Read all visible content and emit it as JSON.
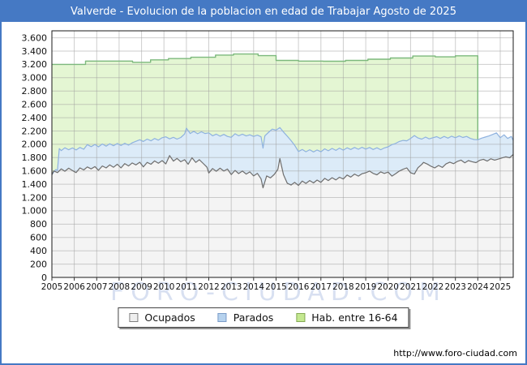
{
  "window": {
    "title": "Valverde - Evolucion de la poblacion en edad de Trabajar Agosto de 2025"
  },
  "watermark": {
    "text": "FORO-CIUDAD.COM"
  },
  "footer": {
    "url": "http://www.foro-ciudad.com"
  },
  "colors": {
    "titlebar_bg": "#4579c4",
    "frame_border": "#4579c4",
    "plot_frame": "#1a1a1a",
    "gridline": "rgba(158,158,158,0.5)",
    "hab_fill": "#e4f6d3",
    "hab_line": "#7db97d",
    "parados_fill": "#dcebf8",
    "parados_line": "#8fb2df",
    "ocupados_fill": "#f4f4f4",
    "ocupados_line": "#6e6e6e"
  },
  "legend": {
    "items": [
      {
        "label": "Ocupados",
        "fill": "#efefef",
        "border": "#808080"
      },
      {
        "label": "Parados",
        "fill": "#b6d2ee",
        "border": "#7b9cc8"
      },
      {
        "label": "Hab. entre 16-64",
        "fill": "#c4e890",
        "border": "#85aa55"
      }
    ]
  },
  "chart_data": {
    "type": "area",
    "title": "Valverde - Evolucion de la poblacion en edad de Trabajar Agosto de 2025",
    "xlabel": "",
    "ylabel": "",
    "grid": true,
    "legend_position": "bottom",
    "ylim": [
      0,
      3600
    ],
    "y_tick_step": 200,
    "x_range": [
      2005.0,
      2025.58
    ],
    "x_tick_labels": [
      "2005",
      "2006",
      "2007",
      "2008",
      "2009",
      "2010",
      "2011",
      "2012",
      "2013",
      "2014",
      "2015",
      "2016",
      "2017",
      "2018",
      "2019",
      "2020",
      "2021",
      "2022",
      "2023",
      "2024",
      "2025"
    ],
    "y_tick_labels": [
      "0",
      "200",
      "400",
      "600",
      "800",
      "1.000",
      "1.200",
      "1.400",
      "1.600",
      "1.800",
      "2.000",
      "2.200",
      "2.400",
      "2.600",
      "2.800",
      "3.000",
      "3.200",
      "3.400",
      "3.600"
    ],
    "stacking_note": "Parados series is drawn stacked on top of Ocupados; Hab. entre 16-64 is the annual stepped total, data ends Jan 2024",
    "series": [
      {
        "id": "hab",
        "name": "Hab. entre 16-64",
        "render": "step",
        "fill": "#e4f6d3",
        "line": "#7db97d",
        "steps": [
          [
            2005.0,
            3200
          ],
          [
            2006.5,
            3250
          ],
          [
            2007.6,
            3250
          ],
          [
            2008.6,
            3232
          ],
          [
            2009.4,
            3268
          ],
          [
            2010.2,
            3288
          ],
          [
            2011.2,
            3308
          ],
          [
            2012.3,
            3340
          ],
          [
            2013.1,
            3356
          ],
          [
            2014.2,
            3332
          ],
          [
            2015.0,
            3260
          ],
          [
            2016.0,
            3250
          ],
          [
            2017.1,
            3248
          ],
          [
            2018.1,
            3260
          ],
          [
            2019.1,
            3278
          ],
          [
            2020.1,
            3296
          ],
          [
            2021.1,
            3326
          ],
          [
            2022.1,
            3314
          ],
          [
            2023.0,
            3330
          ]
        ],
        "end_x": 2024.0,
        "end_drop_to": 2068
      },
      {
        "id": "parados",
        "name": "Parados",
        "render": "line",
        "fill": "#dcebf8",
        "line": "#8fb2df",
        "points": [
          [
            2005.0,
            1545
          ],
          [
            2005.17,
            1620
          ],
          [
            2005.25,
            1610
          ],
          [
            2005.33,
            1935
          ],
          [
            2005.42,
            1905
          ],
          [
            2005.58,
            1948
          ],
          [
            2005.75,
            1918
          ],
          [
            2005.92,
            1945
          ],
          [
            2006.08,
            1915
          ],
          [
            2006.25,
            1952
          ],
          [
            2006.42,
            1925
          ],
          [
            2006.58,
            1995
          ],
          [
            2006.75,
            1965
          ],
          [
            2006.92,
            1998
          ],
          [
            2007.08,
            1962
          ],
          [
            2007.25,
            2005
          ],
          [
            2007.42,
            1972
          ],
          [
            2007.58,
            2008
          ],
          [
            2007.75,
            1978
          ],
          [
            2007.92,
            2012
          ],
          [
            2008.08,
            1982
          ],
          [
            2008.25,
            2015
          ],
          [
            2008.42,
            1988
          ],
          [
            2008.58,
            2022
          ],
          [
            2008.75,
            2045
          ],
          [
            2008.92,
            2068
          ],
          [
            2009.08,
            2042
          ],
          [
            2009.25,
            2078
          ],
          [
            2009.42,
            2052
          ],
          [
            2009.58,
            2088
          ],
          [
            2009.75,
            2062
          ],
          [
            2009.92,
            2098
          ],
          [
            2010.08,
            2112
          ],
          [
            2010.25,
            2082
          ],
          [
            2010.42,
            2105
          ],
          [
            2010.58,
            2078
          ],
          [
            2010.75,
            2102
          ],
          [
            2010.92,
            2155
          ],
          [
            2011.0,
            2242
          ],
          [
            2011.17,
            2162
          ],
          [
            2011.33,
            2195
          ],
          [
            2011.5,
            2158
          ],
          [
            2011.67,
            2188
          ],
          [
            2011.83,
            2162
          ],
          [
            2012.0,
            2172
          ],
          [
            2012.17,
            2128
          ],
          [
            2012.33,
            2152
          ],
          [
            2012.5,
            2122
          ],
          [
            2012.67,
            2148
          ],
          [
            2012.83,
            2118
          ],
          [
            2013.0,
            2105
          ],
          [
            2013.17,
            2158
          ],
          [
            2013.33,
            2128
          ],
          [
            2013.5,
            2152
          ],
          [
            2013.67,
            2125
          ],
          [
            2013.83,
            2142
          ],
          [
            2014.0,
            2118
          ],
          [
            2014.17,
            2138
          ],
          [
            2014.33,
            2112
          ],
          [
            2014.42,
            1942
          ],
          [
            2014.5,
            2128
          ],
          [
            2014.67,
            2182
          ],
          [
            2014.83,
            2228
          ],
          [
            2015.0,
            2212
          ],
          [
            2015.17,
            2252
          ],
          [
            2015.33,
            2185
          ],
          [
            2015.5,
            2122
          ],
          [
            2015.67,
            2055
          ],
          [
            2015.83,
            1985
          ],
          [
            2016.0,
            1892
          ],
          [
            2016.17,
            1922
          ],
          [
            2016.33,
            1888
          ],
          [
            2016.5,
            1918
          ],
          [
            2016.67,
            1885
          ],
          [
            2016.83,
            1915
          ],
          [
            2017.0,
            1888
          ],
          [
            2017.17,
            1932
          ],
          [
            2017.33,
            1902
          ],
          [
            2017.5,
            1938
          ],
          [
            2017.67,
            1908
          ],
          [
            2017.83,
            1942
          ],
          [
            2018.0,
            1912
          ],
          [
            2018.17,
            1948
          ],
          [
            2018.33,
            1922
          ],
          [
            2018.5,
            1952
          ],
          [
            2018.67,
            1925
          ],
          [
            2018.83,
            1955
          ],
          [
            2019.0,
            1928
          ],
          [
            2019.17,
            1952
          ],
          [
            2019.33,
            1922
          ],
          [
            2019.5,
            1948
          ],
          [
            2019.67,
            1918
          ],
          [
            2019.83,
            1945
          ],
          [
            2020.0,
            1962
          ],
          [
            2020.17,
            1995
          ],
          [
            2020.33,
            2012
          ],
          [
            2020.5,
            2042
          ],
          [
            2020.67,
            2058
          ],
          [
            2020.83,
            2052
          ],
          [
            2021.0,
            2088
          ],
          [
            2021.17,
            2132
          ],
          [
            2021.33,
            2095
          ],
          [
            2021.5,
            2078
          ],
          [
            2021.67,
            2108
          ],
          [
            2021.83,
            2082
          ],
          [
            2022.0,
            2098
          ],
          [
            2022.17,
            2115
          ],
          [
            2022.33,
            2088
          ],
          [
            2022.5,
            2118
          ],
          [
            2022.67,
            2092
          ],
          [
            2022.83,
            2122
          ],
          [
            2023.0,
            2098
          ],
          [
            2023.17,
            2125
          ],
          [
            2023.33,
            2102
          ],
          [
            2023.5,
            2118
          ],
          [
            2023.67,
            2088
          ],
          [
            2023.83,
            2072
          ],
          [
            2024.0,
            2068
          ],
          [
            2024.17,
            2092
          ],
          [
            2024.33,
            2108
          ],
          [
            2024.5,
            2125
          ],
          [
            2024.67,
            2148
          ],
          [
            2024.83,
            2172
          ],
          [
            2025.0,
            2098
          ],
          [
            2025.17,
            2142
          ],
          [
            2025.33,
            2088
          ],
          [
            2025.5,
            2118
          ],
          [
            2025.58,
            2058
          ]
        ]
      },
      {
        "id": "ocupados",
        "name": "Ocupados",
        "render": "line",
        "fill": "#f4f4f4",
        "line": "#6e6e6e",
        "points": [
          [
            2005.0,
            1540
          ],
          [
            2005.08,
            1600
          ],
          [
            2005.25,
            1575
          ],
          [
            2005.42,
            1630
          ],
          [
            2005.58,
            1595
          ],
          [
            2005.75,
            1640
          ],
          [
            2005.92,
            1605
          ],
          [
            2006.08,
            1575
          ],
          [
            2006.25,
            1645
          ],
          [
            2006.42,
            1615
          ],
          [
            2006.58,
            1660
          ],
          [
            2006.75,
            1630
          ],
          [
            2006.92,
            1665
          ],
          [
            2007.08,
            1610
          ],
          [
            2007.25,
            1675
          ],
          [
            2007.42,
            1645
          ],
          [
            2007.58,
            1690
          ],
          [
            2007.75,
            1655
          ],
          [
            2007.92,
            1700
          ],
          [
            2008.08,
            1645
          ],
          [
            2008.25,
            1710
          ],
          [
            2008.42,
            1675
          ],
          [
            2008.58,
            1720
          ],
          [
            2008.75,
            1690
          ],
          [
            2008.92,
            1730
          ],
          [
            2009.08,
            1660
          ],
          [
            2009.25,
            1728
          ],
          [
            2009.42,
            1700
          ],
          [
            2009.58,
            1750
          ],
          [
            2009.75,
            1715
          ],
          [
            2009.92,
            1755
          ],
          [
            2010.08,
            1705
          ],
          [
            2010.25,
            1830
          ],
          [
            2010.42,
            1748
          ],
          [
            2010.58,
            1788
          ],
          [
            2010.75,
            1738
          ],
          [
            2010.92,
            1768
          ],
          [
            2011.08,
            1700
          ],
          [
            2011.25,
            1798
          ],
          [
            2011.42,
            1728
          ],
          [
            2011.58,
            1768
          ],
          [
            2011.75,
            1712
          ],
          [
            2011.92,
            1655
          ],
          [
            2012.0,
            1568
          ],
          [
            2012.17,
            1635
          ],
          [
            2012.33,
            1595
          ],
          [
            2012.5,
            1640
          ],
          [
            2012.67,
            1598
          ],
          [
            2012.83,
            1628
          ],
          [
            2013.0,
            1545
          ],
          [
            2013.17,
            1608
          ],
          [
            2013.33,
            1560
          ],
          [
            2013.5,
            1598
          ],
          [
            2013.67,
            1552
          ],
          [
            2013.83,
            1585
          ],
          [
            2014.0,
            1525
          ],
          [
            2014.17,
            1562
          ],
          [
            2014.33,
            1480
          ],
          [
            2014.42,
            1345
          ],
          [
            2014.58,
            1525
          ],
          [
            2014.75,
            1495
          ],
          [
            2014.92,
            1548
          ],
          [
            2015.08,
            1622
          ],
          [
            2015.17,
            1785
          ],
          [
            2015.33,
            1545
          ],
          [
            2015.5,
            1415
          ],
          [
            2015.67,
            1388
          ],
          [
            2015.83,
            1428
          ],
          [
            2016.0,
            1382
          ],
          [
            2016.17,
            1448
          ],
          [
            2016.33,
            1412
          ],
          [
            2016.5,
            1455
          ],
          [
            2016.67,
            1420
          ],
          [
            2016.83,
            1462
          ],
          [
            2017.0,
            1428
          ],
          [
            2017.17,
            1488
          ],
          [
            2017.33,
            1455
          ],
          [
            2017.5,
            1498
          ],
          [
            2017.67,
            1465
          ],
          [
            2017.83,
            1505
          ],
          [
            2018.0,
            1478
          ],
          [
            2018.17,
            1538
          ],
          [
            2018.33,
            1508
          ],
          [
            2018.5,
            1552
          ],
          [
            2018.67,
            1522
          ],
          [
            2018.83,
            1558
          ],
          [
            2019.0,
            1572
          ],
          [
            2019.17,
            1598
          ],
          [
            2019.33,
            1562
          ],
          [
            2019.5,
            1542
          ],
          [
            2019.67,
            1585
          ],
          [
            2019.83,
            1562
          ],
          [
            2020.0,
            1582
          ],
          [
            2020.17,
            1522
          ],
          [
            2020.33,
            1558
          ],
          [
            2020.5,
            1598
          ],
          [
            2020.67,
            1625
          ],
          [
            2020.83,
            1645
          ],
          [
            2021.0,
            1572
          ],
          [
            2021.17,
            1552
          ],
          [
            2021.33,
            1648
          ],
          [
            2021.5,
            1698
          ],
          [
            2021.58,
            1728
          ],
          [
            2021.75,
            1702
          ],
          [
            2021.92,
            1668
          ],
          [
            2022.08,
            1645
          ],
          [
            2022.25,
            1682
          ],
          [
            2022.42,
            1652
          ],
          [
            2022.58,
            1705
          ],
          [
            2022.75,
            1732
          ],
          [
            2022.92,
            1708
          ],
          [
            2023.08,
            1742
          ],
          [
            2023.25,
            1762
          ],
          [
            2023.42,
            1722
          ],
          [
            2023.58,
            1755
          ],
          [
            2023.75,
            1738
          ],
          [
            2023.92,
            1725
          ],
          [
            2024.08,
            1758
          ],
          [
            2024.25,
            1775
          ],
          [
            2024.42,
            1748
          ],
          [
            2024.58,
            1782
          ],
          [
            2024.75,
            1762
          ],
          [
            2024.92,
            1778
          ],
          [
            2025.08,
            1795
          ],
          [
            2025.25,
            1812
          ],
          [
            2025.42,
            1798
          ],
          [
            2025.58,
            1848
          ]
        ]
      }
    ]
  }
}
